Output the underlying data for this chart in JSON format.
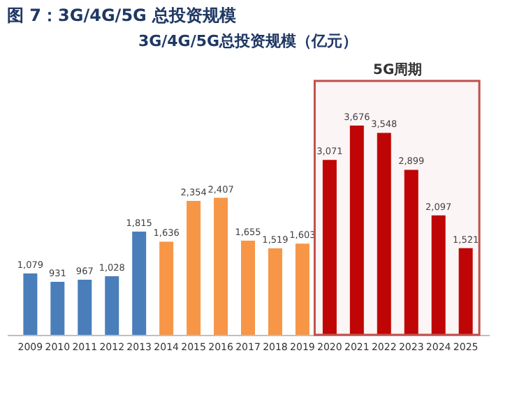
{
  "chart_data": {
    "type": "bar",
    "title": "图 7：3G/4G/5G 总投资规模",
    "subtitle": "3G/4G/5G总投资规模（亿元）",
    "categories": [
      "2009",
      "2010",
      "2011",
      "2012",
      "2013",
      "2014",
      "2015",
      "2016",
      "2017",
      "2018",
      "2019",
      "2020",
      "2021",
      "2022",
      "2023",
      "2024",
      "2025"
    ],
    "values": [
      1079,
      931,
      967,
      1028,
      1815,
      1636,
      2354,
      2407,
      1655,
      1519,
      1603,
      3071,
      3676,
      3548,
      2899,
      2097,
      1521
    ],
    "colors": [
      "#4a7ebb",
      "#4a7ebb",
      "#4a7ebb",
      "#4a7ebb",
      "#4a7ebb",
      "#f79646",
      "#f79646",
      "#f79646",
      "#f79646",
      "#f79646",
      "#f79646",
      "#c00000",
      "#c00000",
      "#c00000",
      "#c00000",
      "#c00000",
      "#c00000"
    ],
    "value_labels": [
      "1,079",
      "931",
      "967",
      "1,028",
      "1,815",
      "1,636",
      "2,354",
      "2,407",
      "1,655",
      "1,519",
      "1,603",
      "3,071",
      "3,676",
      "3,548",
      "2,899",
      "2,097",
      "1,521"
    ],
    "bands": [
      {
        "axis": "x",
        "from": "2020",
        "to": "2025",
        "label": "5G周期",
        "color": "#c0504d"
      }
    ]
  }
}
